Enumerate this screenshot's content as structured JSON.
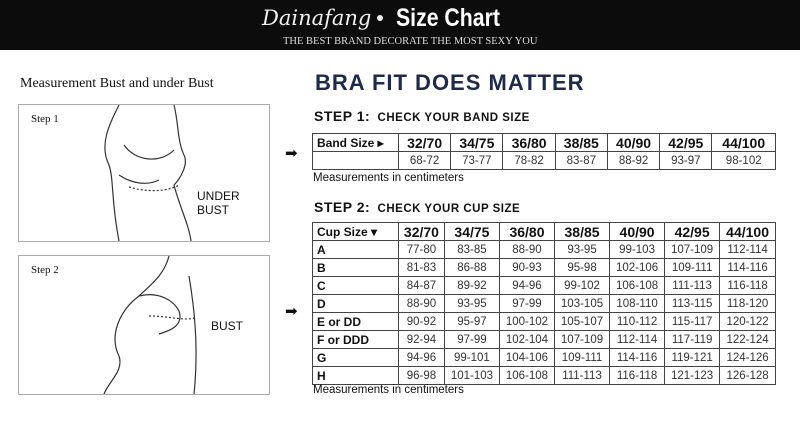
{
  "header": {
    "brand": "Dainafang",
    "title": "Size Chart",
    "tagline": "THE BEST BRAND DECORATE THE MOST SEXY YOU"
  },
  "left": {
    "title": "Measurement Bust and under Bust",
    "step1": {
      "label": "Step 1",
      "caption": "UNDER BUST"
    },
    "step2": {
      "label": "Step 2",
      "caption": "BUST"
    }
  },
  "main": {
    "title": "BRA FIT DOES MATTER",
    "step1": {
      "prefix": "STEP 1:",
      "text": "CHECK YOUR BAND SIZE"
    },
    "step2": {
      "prefix": "STEP 2:",
      "text": "CHECK YOUR CUP SIZE"
    },
    "band_table": {
      "header": "Band Size ▸",
      "sizes": [
        "32/70",
        "34/75",
        "36/80",
        "38/85",
        "40/90",
        "42/95",
        "44/100"
      ],
      "values": [
        "68-72",
        "73-77",
        "78-82",
        "83-87",
        "88-92",
        "93-97",
        "98-102"
      ]
    },
    "cup_table": {
      "header": "Cup Size ▾",
      "sizes": [
        "32/70",
        "34/75",
        "36/80",
        "38/85",
        "40/90",
        "42/95",
        "44/100"
      ],
      "rows": [
        {
          "cup": "A",
          "values": [
            "77-80",
            "83-85",
            "88-90",
            "93-95",
            "99-103",
            "107-109",
            "112-114"
          ]
        },
        {
          "cup": "B",
          "values": [
            "81-83",
            "86-88",
            "90-93",
            "95-98",
            "102-106",
            "109-111",
            "114-116"
          ]
        },
        {
          "cup": "C",
          "values": [
            "84-87",
            "89-92",
            "94-96",
            "99-102",
            "106-108",
            "111-113",
            "116-118"
          ]
        },
        {
          "cup": "D",
          "values": [
            "88-90",
            "93-95",
            "97-99",
            "103-105",
            "108-110",
            "113-115",
            "118-120"
          ]
        },
        {
          "cup": "E or DD",
          "values": [
            "90-92",
            "95-97",
            "100-102",
            "105-107",
            "110-112",
            "115-117",
            "120-122"
          ]
        },
        {
          "cup": "F or DDD",
          "values": [
            "92-94",
            "97-99",
            "102-104",
            "107-109",
            "112-114",
            "117-119",
            "122-124"
          ]
        },
        {
          "cup": "G",
          "values": [
            "94-96",
            "99-101",
            "104-106",
            "109-111",
            "114-116",
            "119-121",
            "124-126"
          ]
        },
        {
          "cup": "H",
          "values": [
            "96-98",
            "101-103",
            "106-108",
            "111-113",
            "116-118",
            "121-123",
            "126-128"
          ]
        }
      ]
    },
    "note": "Measurements in centimeters"
  }
}
